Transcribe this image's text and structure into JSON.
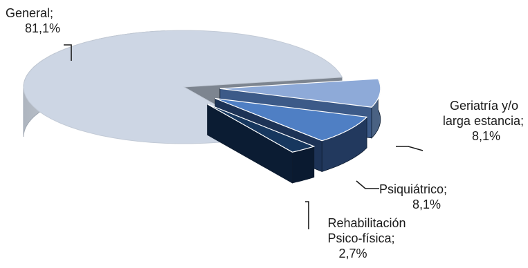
{
  "chart_data": {
    "type": "pie",
    "style": "3d-exploded",
    "legend": "none",
    "series": [
      {
        "name": "General",
        "value": 81.1,
        "value_label": "81,1%",
        "label_lines": [
          "General;",
          "81,1%"
        ],
        "color": "#cdd6e4"
      },
      {
        "name": "Geriatría y/o larga estancia",
        "value": 8.1,
        "value_label": "8,1%",
        "label_lines": [
          "Geriatría y/o",
          "larga estancia;",
          "8,1%"
        ],
        "color": "#8eaad8"
      },
      {
        "name": "Psiquiátrico",
        "value": 8.1,
        "value_label": "8,1%",
        "label_lines": [
          "Psiquiátrico;",
          "8,1%"
        ],
        "color": "#4f7fc4"
      },
      {
        "name": "Rehabilitación Psico-física",
        "value": 2.7,
        "value_label": "2,7%",
        "label_lines": [
          "Rehabilitación",
          "Psico-física;",
          "2,7%"
        ],
        "color": "#17375e"
      }
    ]
  }
}
